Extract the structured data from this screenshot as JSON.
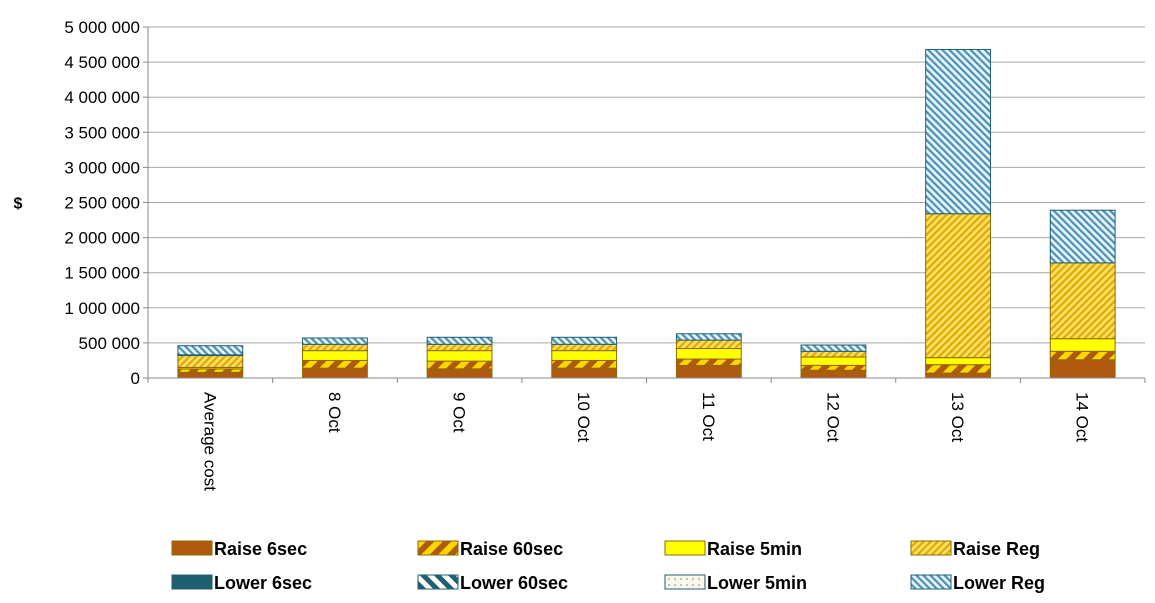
{
  "chart_data": {
    "type": "bar",
    "stacked": true,
    "xlabel": "",
    "ylabel": "$",
    "ylim": [
      0,
      5000000
    ],
    "ytick_step": 500000,
    "ytick_labels": [
      "0",
      "500 000",
      "1 000 000",
      "1 500 000",
      "2 000 000",
      "2 500 000",
      "3 000 000",
      "3 500 000",
      "4 000 000",
      "4 500 000",
      "5 000 000"
    ],
    "grid": true,
    "legend_position": "bottom",
    "categories": [
      "Average cost",
      "8 Oct",
      "9 Oct",
      "10 Oct",
      "11 Oct",
      "12 Oct",
      "13 Oct",
      "14 Oct"
    ],
    "series": [
      {
        "name": "Raise 6sec",
        "values": [
          80000,
          140000,
          130000,
          140000,
          180000,
          110000,
          70000,
          260000
        ],
        "color": "#B05A10",
        "pattern": "solid"
      },
      {
        "name": "Raise 60sec",
        "values": [
          50000,
          110000,
          110000,
          110000,
          90000,
          70000,
          120000,
          120000
        ],
        "color": "#B05A10",
        "pattern": "wide-diagonal-yellow"
      },
      {
        "name": "Raise 5min",
        "values": [
          20000,
          140000,
          150000,
          140000,
          150000,
          120000,
          100000,
          180000
        ],
        "color": "#FFFF00",
        "pattern": "solid"
      },
      {
        "name": "Raise Reg",
        "values": [
          170000,
          90000,
          90000,
          90000,
          120000,
          80000,
          2050000,
          1080000
        ],
        "color": "#F5C518",
        "pattern": "diagonal"
      },
      {
        "name": "Lower 6sec",
        "values": [
          10000,
          0,
          0,
          0,
          0,
          0,
          0,
          0
        ],
        "color": "#1F5F6F",
        "pattern": "solid"
      },
      {
        "name": "Lower 60sec",
        "values": [
          0,
          0,
          0,
          0,
          0,
          0,
          0,
          0
        ],
        "color": "#1F5F6F",
        "pattern": "wide-diagonal-white"
      },
      {
        "name": "Lower 5min",
        "values": [
          0,
          0,
          0,
          0,
          0,
          0,
          0,
          0
        ],
        "color": "#F5F5E8",
        "pattern": "dotted"
      },
      {
        "name": "Lower Reg",
        "values": [
          130000,
          90000,
          100000,
          100000,
          90000,
          90000,
          2340000,
          750000
        ],
        "color": "#4A90B8",
        "pattern": "diagonal"
      }
    ]
  }
}
